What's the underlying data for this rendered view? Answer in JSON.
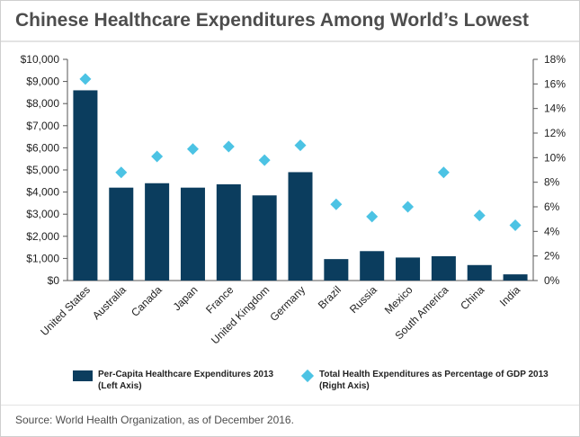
{
  "title": "Chinese Healthcare Expenditures Among World’s Lowest",
  "source": "Source: World Health Organization, as of December 2016.",
  "colors": {
    "bar": "#0b3d5e",
    "diamond": "#4cc3e4",
    "title": "#4d4d4d"
  },
  "chart_data": {
    "type": "bar",
    "categories": [
      "United States",
      "Australia",
      "Canada",
      "Japan",
      "France",
      "United Kingdom",
      "Germany",
      "Brazil",
      "Russia",
      "Mexico",
      "South America",
      "China",
      "India"
    ],
    "series": [
      {
        "name": "Per-Capita Healthcare Expenditures 2013",
        "axis_note": "(Left Axis)",
        "type": "bar",
        "values": [
          8600,
          4200,
          4400,
          4200,
          4350,
          3850,
          4900,
          970,
          1330,
          1040,
          1100,
          700,
          280
        ]
      },
      {
        "name": "Total Health Expenditures as Percentage of GDP 2013",
        "axis_note": "(Right Axis)",
        "type": "scatter",
        "marker": "diamond",
        "values": [
          16.4,
          8.8,
          10.1,
          10.7,
          10.9,
          9.8,
          11.0,
          6.2,
          5.2,
          6.0,
          8.8,
          5.3,
          4.5
        ]
      }
    ],
    "left_axis": {
      "ticks": [
        "$0",
        "$1,000",
        "$2,000",
        "$3,000",
        "$4,000",
        "$5,000",
        "$6,000",
        "$7,000",
        "$8,000",
        "$9,000",
        "$10,000"
      ],
      "ylim": [
        0,
        10000
      ]
    },
    "right_axis": {
      "ticks": [
        "0%",
        "2%",
        "4%",
        "6%",
        "8%",
        "10%",
        "12%",
        "14%",
        "16%",
        "18%"
      ],
      "ylim": [
        0,
        18
      ]
    },
    "grid": false,
    "legend_position": "bottom"
  }
}
